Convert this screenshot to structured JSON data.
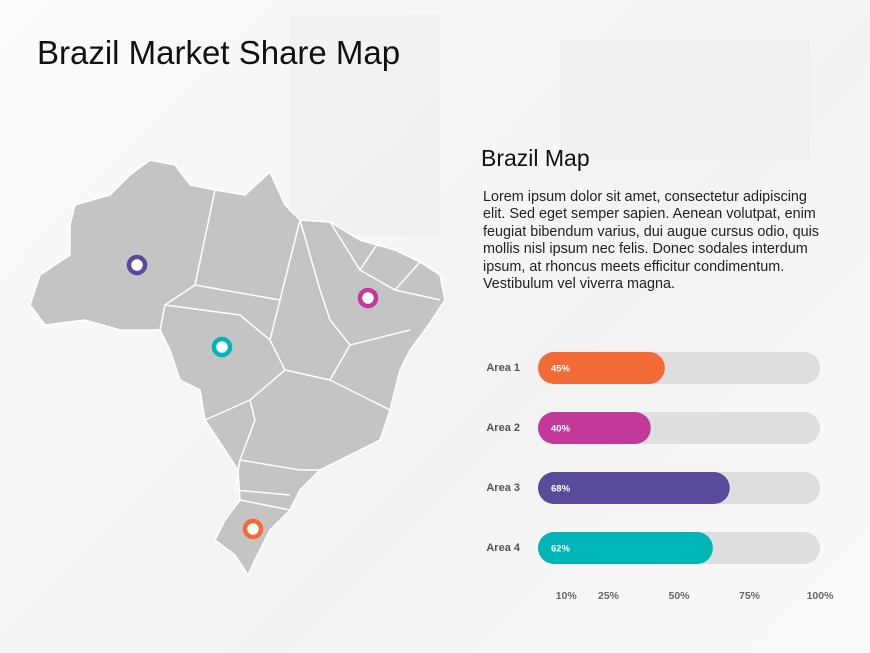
{
  "title": "Brazil Market Share Map",
  "heading": "Brazil Map",
  "body": "Lorem ipsum dolor sit amet, consectetur adipiscing elit. Sed eget semper sapien. Aenean volutpat, enim feugiat bibendum varius, dui augue cursus odio, quis mollis nisl ipsum nec felis. Donec sodales interdum ipsum, at rhoncus meets efficitur condimentum. Vestibulum vel viverra magna.",
  "chart_data": {
    "type": "bar",
    "categories": [
      "Area 1",
      "Area 2",
      "Area 3",
      "Area 4"
    ],
    "values": [
      45,
      40,
      68,
      62
    ],
    "value_labels": [
      "45%",
      "40%",
      "68%",
      "62%"
    ],
    "colors": [
      "#f26a35",
      "#c2399a",
      "#5a4a9c",
      "#00b5b8"
    ],
    "xlim": [
      0,
      100
    ],
    "xticks": [
      {
        "value": 10,
        "label": "10%"
      },
      {
        "value": 25,
        "label": "25%"
      },
      {
        "value": 50,
        "label": "50%"
      },
      {
        "value": 75,
        "label": "75%"
      },
      {
        "value": 100,
        "label": "100%"
      }
    ]
  }
}
